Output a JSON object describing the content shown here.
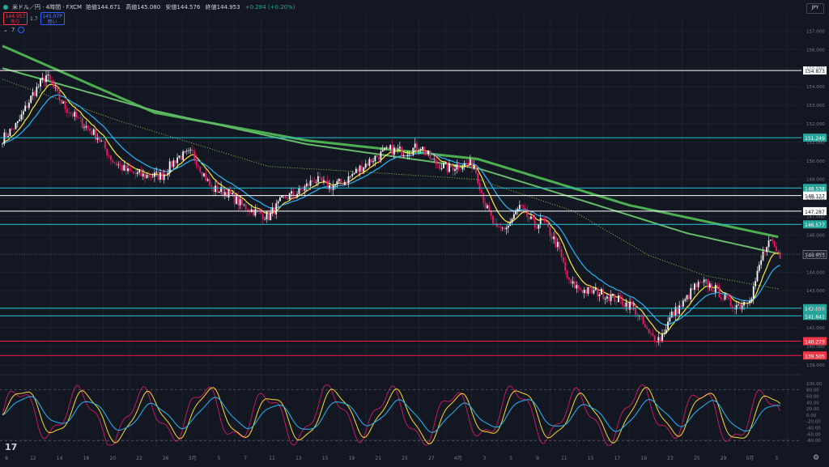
{
  "header": {
    "symbol": "米ドル／円 · 4時間 · FXCM",
    "open": "始値144.671",
    "high": "高値145.080",
    "low": "安値144.576",
    "close": "終値144.953",
    "change": "+0.284 (+0.20%)"
  },
  "trade": {
    "sell_price": "144.957",
    "sell_label": "売り",
    "spread": "1.7",
    "buy_price": "145.07P",
    "buy_label": "買い"
  },
  "indicator_count": "7",
  "currency_label": "JPY",
  "logo": "17",
  "settings_icon": "⚙",
  "colors": {
    "bg": "#131722",
    "grid": "#1e222d",
    "up": "#ffffff",
    "down": "#e91e63",
    "ma_green": "#4caf50",
    "ma_yellow": "#ffeb3b",
    "ma_blue": "#29b6f6",
    "hline_white": "#ffffff",
    "hline_cyan": "#26c6da",
    "hline_red": "#ff1744"
  },
  "price_axis": {
    "ticks": [
      "157.000",
      "156.000",
      "155.000",
      "154.000",
      "153.000",
      "152.000",
      "151.000",
      "150.000",
      "149.000",
      "148.000",
      "147.000",
      "146.000",
      "145.000",
      "144.000",
      "143.000",
      "142.000",
      "141.000",
      "140.000",
      "139.000"
    ],
    "range": [
      138.6,
      157.8
    ]
  },
  "hlines": [
    {
      "price": 154.873,
      "label": "154.873",
      "type": "white"
    },
    {
      "price": 151.249,
      "label": "151.249",
      "type": "cyan"
    },
    {
      "price": 148.538,
      "label": "148.538",
      "type": "cyan"
    },
    {
      "price": 148.127,
      "label": "148.127",
      "type": "white"
    },
    {
      "price": 147.287,
      "label": "147.287",
      "type": "white"
    },
    {
      "price": 146.577,
      "label": "146.577",
      "type": "cyan"
    },
    {
      "price": 142.058,
      "label": "142.058",
      "type": "cyan"
    },
    {
      "price": 141.641,
      "label": "141.641",
      "type": "cyan"
    },
    {
      "price": 140.279,
      "label": "140.279",
      "type": "red"
    },
    {
      "price": 139.505,
      "label": "139.505",
      "type": "red"
    }
  ],
  "current_price": {
    "price": 144.953,
    "label": "144.953"
  },
  "osc_axis": {
    "ticks": [
      "120.00",
      "100.00",
      "80.00",
      "60.00",
      "40.00",
      "20.00",
      "0.00",
      "-20.00",
      "-40.00",
      "-60.00",
      "-80.00",
      "-100.00"
    ],
    "range": [
      -100,
      120
    ]
  },
  "time_axis": [
    "8",
    "12",
    "14",
    "18",
    "20",
    "22",
    "26",
    "3月",
    "5",
    "7",
    "11",
    "13",
    "15",
    "19",
    "21",
    "25",
    "27",
    "4月",
    "3",
    "5",
    "9",
    "11",
    "15",
    "17",
    "19",
    "23",
    "25",
    "29",
    "5月",
    "3"
  ],
  "chart_data": {
    "type": "candlestick",
    "symbol": "USDJPY",
    "timeframe": "4h",
    "anchors": [
      [
        0,
        151.2
      ],
      [
        8,
        152.0
      ],
      [
        16,
        153.6
      ],
      [
        23,
        154.6
      ],
      [
        32,
        153.0
      ],
      [
        40,
        152.2
      ],
      [
        50,
        151.3
      ],
      [
        58,
        150.0
      ],
      [
        66,
        149.4
      ],
      [
        74,
        149.2
      ],
      [
        84,
        149.2
      ],
      [
        92,
        150.2
      ],
      [
        100,
        150.4
      ],
      [
        110,
        148.5
      ],
      [
        118,
        148.3
      ],
      [
        126,
        147.6
      ],
      [
        134,
        147.2
      ],
      [
        140,
        147.0
      ],
      [
        148,
        148.0
      ],
      [
        156,
        148.3
      ],
      [
        164,
        149.0
      ],
      [
        172,
        148.6
      ],
      [
        180,
        148.9
      ],
      [
        188,
        149.6
      ],
      [
        196,
        150.2
      ],
      [
        204,
        150.6
      ],
      [
        212,
        150.5
      ],
      [
        220,
        150.8
      ],
      [
        226,
        150.0
      ],
      [
        234,
        149.6
      ],
      [
        242,
        149.8
      ],
      [
        248,
        149.8
      ],
      [
        254,
        147.6
      ],
      [
        260,
        146.2
      ],
      [
        266,
        146.5
      ],
      [
        272,
        147.5
      ],
      [
        280,
        146.5
      ],
      [
        284,
        146.8
      ],
      [
        292,
        145.4
      ],
      [
        298,
        143.4
      ],
      [
        306,
        143.0
      ],
      [
        314,
        142.9
      ],
      [
        324,
        142.5
      ],
      [
        332,
        142.1
      ],
      [
        340,
        140.6
      ],
      [
        346,
        140.4
      ],
      [
        352,
        141.7
      ],
      [
        358,
        142.3
      ],
      [
        364,
        143.2
      ],
      [
        370,
        143.4
      ],
      [
        376,
        143.0
      ],
      [
        382,
        142.3
      ],
      [
        388,
        142.2
      ],
      [
        394,
        142.8
      ],
      [
        400,
        145.0
      ],
      [
        404,
        145.6
      ],
      [
        408,
        144.9
      ]
    ],
    "ma_green_slow": [
      [
        0,
        156.2
      ],
      [
        80,
        152.6
      ],
      [
        160,
        151.1
      ],
      [
        250,
        150.1
      ],
      [
        330,
        147.6
      ],
      [
        408,
        145.9
      ]
    ],
    "ma_green_mid": [
      [
        0,
        155.0
      ],
      [
        80,
        152.7
      ],
      [
        160,
        150.9
      ],
      [
        250,
        149.6
      ],
      [
        310,
        147.7
      ],
      [
        360,
        146.1
      ],
      [
        408,
        145.0
      ]
    ],
    "ma_dotted": [
      [
        0,
        154.4
      ],
      [
        60,
        152.2
      ],
      [
        140,
        149.7
      ],
      [
        190,
        149.4
      ],
      [
        250,
        149.0
      ],
      [
        300,
        147.3
      ],
      [
        340,
        144.9
      ],
      [
        370,
        143.8
      ],
      [
        408,
        143.1
      ]
    ],
    "osc_red": [],
    "osc_yellow": [],
    "osc_blue": []
  }
}
